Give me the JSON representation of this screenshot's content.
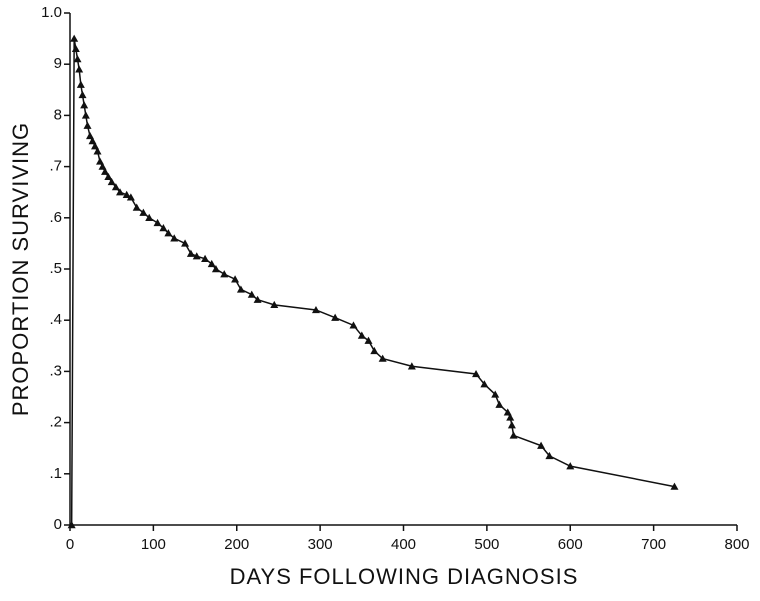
{
  "chart_data": {
    "type": "line",
    "x_label": "DAYS FOLLOWING DIAGNOSIS",
    "y_label": "PROPORTION SURVIVING",
    "xlim": [
      0,
      800
    ],
    "xticks": [
      0,
      100,
      200,
      300,
      400,
      500,
      600,
      700,
      800
    ],
    "ylim": [
      0,
      1
    ],
    "yticks": [
      0,
      {
        "value": 0.1,
        "label": ".1"
      },
      {
        "value": 0.2,
        "label": ".2"
      },
      {
        "value": 0.3,
        "label": ".3"
      },
      {
        "value": 0.4,
        "label": ".4"
      },
      {
        "value": 0.5,
        "label": ".5"
      },
      {
        "value": 0.6,
        "label": ".6"
      },
      {
        "value": 0.7,
        "label": ".7"
      },
      {
        "value": 0.8,
        "label": "8"
      },
      {
        "value": 0.9,
        "label": "9"
      },
      {
        "value": 1,
        "label": "1.0"
      }
    ],
    "grid": false,
    "color": "#111111",
    "marker": "triangle",
    "x": [
      2,
      5,
      7,
      9,
      11,
      13,
      15,
      17,
      19,
      21,
      24,
      27,
      30,
      33,
      36,
      39,
      42,
      46,
      50,
      55,
      60,
      68,
      73,
      80,
      88,
      95,
      105,
      112,
      118,
      125,
      138,
      145,
      152,
      162,
      170,
      175,
      185,
      198,
      205,
      218,
      225,
      245,
      295,
      318,
      340,
      350,
      358,
      365,
      375,
      410,
      487,
      497,
      510,
      515,
      525,
      528,
      530,
      532,
      565,
      575,
      600,
      725
    ],
    "values": [
      0,
      0.95,
      0.93,
      0.91,
      0.89,
      0.86,
      0.84,
      0.82,
      0.8,
      0.78,
      0.76,
      0.75,
      0.74,
      0.73,
      0.71,
      0.7,
      0.69,
      0.68,
      0.67,
      0.66,
      0.65,
      0.645,
      0.64,
      0.62,
      0.61,
      0.6,
      0.59,
      0.58,
      0.57,
      0.56,
      0.55,
      0.53,
      0.525,
      0.52,
      0.51,
      0.5,
      0.49,
      0.48,
      0.46,
      0.45,
      0.44,
      0.43,
      0.42,
      0.405,
      0.39,
      0.37,
      0.36,
      0.34,
      0.325,
      0.31,
      0.295,
      0.275,
      0.255,
      0.235,
      0.22,
      0.21,
      0.195,
      0.175,
      0.155,
      0.135,
      0.115,
      0.075
    ]
  }
}
